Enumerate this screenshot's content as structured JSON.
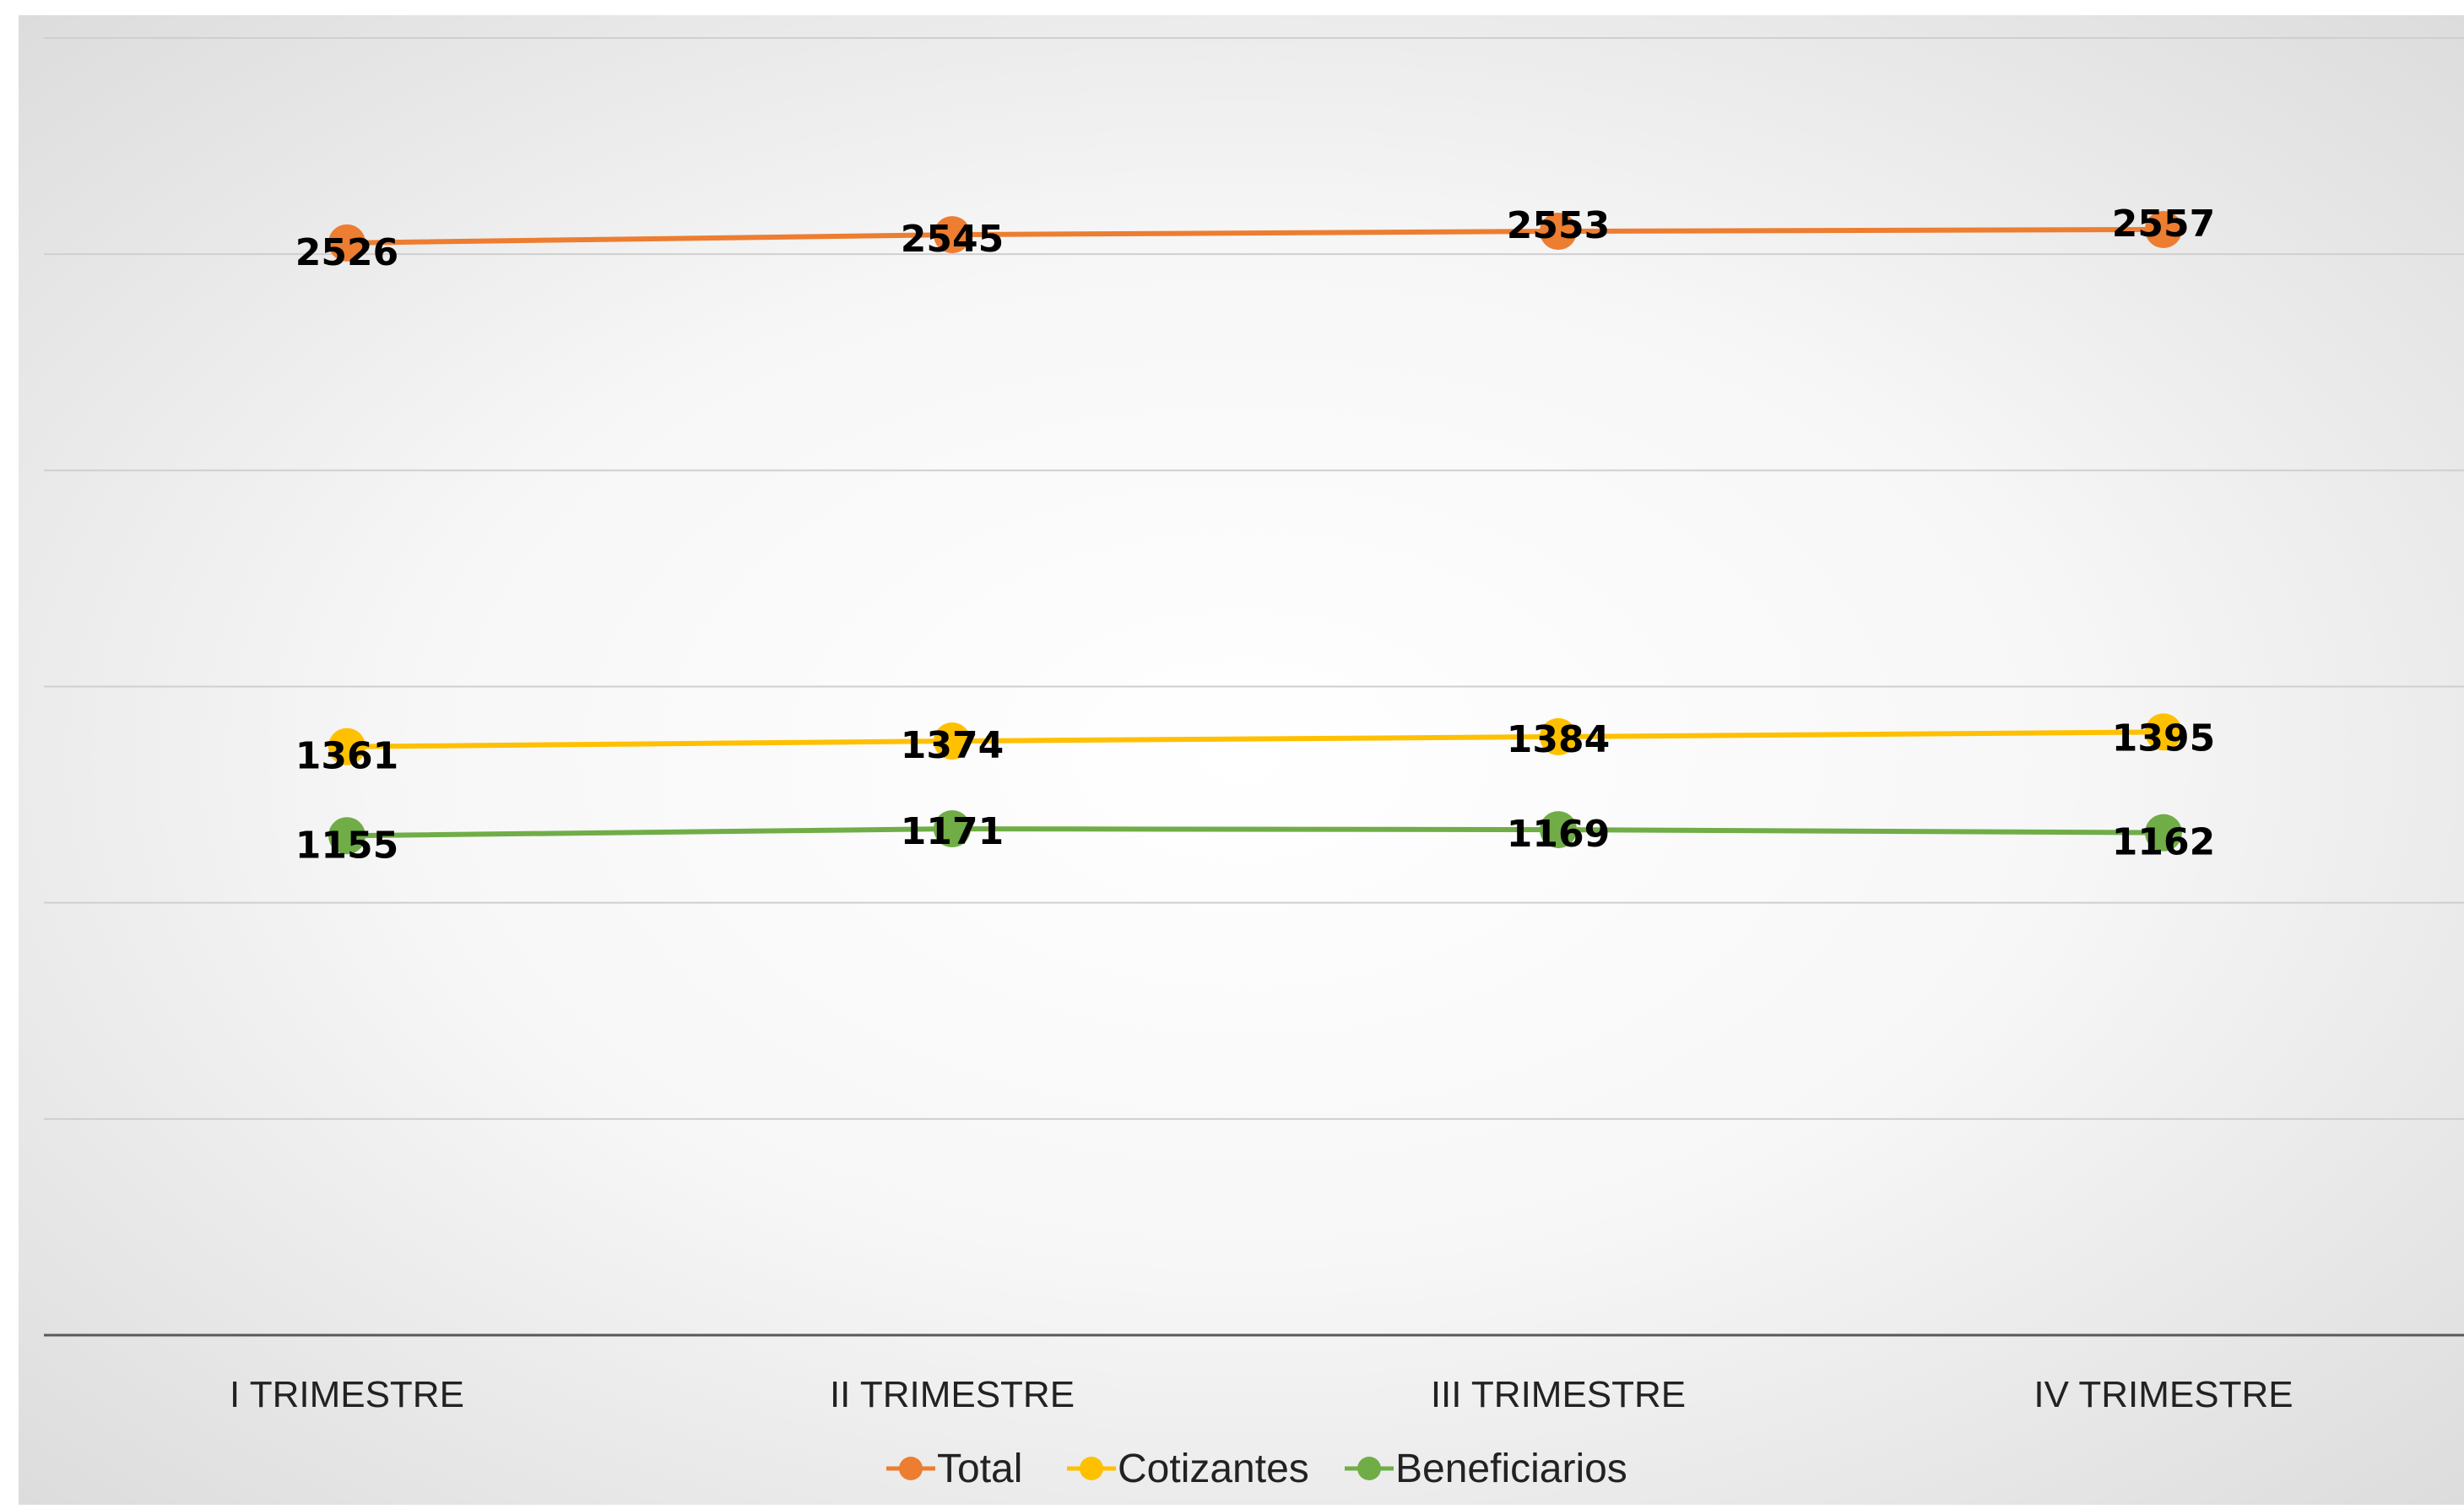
{
  "chart_data": {
    "type": "line",
    "title": "",
    "xlabel": "",
    "ylabel": "",
    "categories": [
      "I TRIMESTRE",
      "II TRIMESTRE",
      "III TRIMESTRE",
      "IV TRIMESTRE"
    ],
    "ylim": [
      0,
      3000
    ],
    "y_axis_labels_visible": false,
    "grid": true,
    "legend_position": "bottom",
    "data_labels": true,
    "series": [
      {
        "name": "Total",
        "color": "#ED7D31",
        "values": [
          2526,
          2545,
          2553,
          2557
        ]
      },
      {
        "name": "Cotizantes",
        "color": "#FFC000",
        "values": [
          1361,
          1374,
          1384,
          1395
        ]
      },
      {
        "name": "Beneficiarios",
        "color": "#70AD47",
        "values": [
          1155,
          1171,
          1169,
          1162
        ]
      }
    ]
  }
}
